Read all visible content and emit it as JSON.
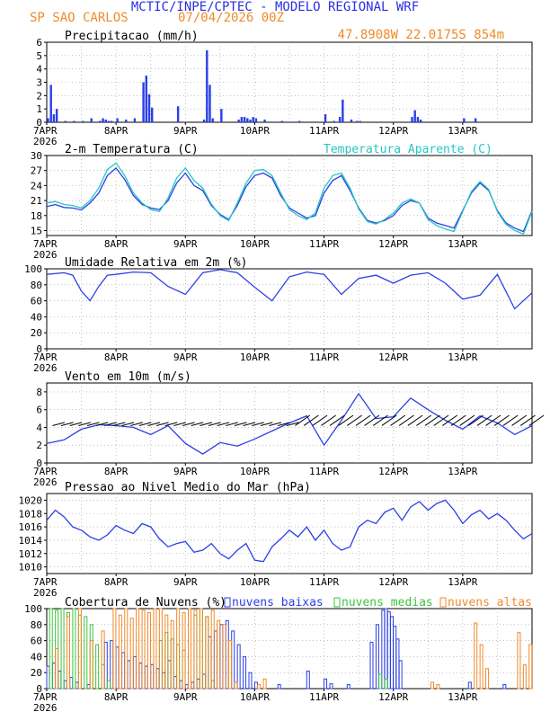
{
  "header": {
    "title": "MCTIC/INPE/CPTEC - MODELO REGIONAL WRF",
    "location": "SP SAO CARLOS",
    "run": "07/04/2026 00Z",
    "coords": "47.8908W 22.0175S 854m"
  },
  "colors": {
    "title": "#2a2fe0",
    "orange": "#f08a2c",
    "blue": "#2b3fe6",
    "cyan": "#26c6c6",
    "green": "#3ec43e",
    "black": "#000000",
    "grid": "#9a9a9a"
  },
  "x_axis": {
    "labels": [
      "7APR",
      "8APR",
      "9APR",
      "10APR",
      "11APR",
      "12APR",
      "13APR"
    ],
    "year": "2026"
  },
  "chart_data": [
    {
      "type": "bar",
      "title": "Precipitacao (mm/h)",
      "ylim": [
        0,
        6
      ],
      "yticks": [
        0,
        1,
        2,
        3,
        4,
        5,
        6
      ],
      "x_unit": "hours since 7APR 00Z",
      "x": [
        0,
        1,
        2,
        3,
        6,
        9,
        12,
        15,
        18,
        19,
        20,
        21,
        22,
        24,
        27,
        30,
        33,
        34,
        35,
        36,
        45,
        54,
        55,
        56,
        57,
        60,
        66,
        67,
        68,
        69,
        70,
        71,
        72,
        75,
        81,
        87,
        96,
        99,
        101,
        102,
        105,
        107,
        108,
        126,
        127,
        128,
        129,
        144,
        148
      ],
      "values": [
        0.3,
        2.8,
        0.6,
        1.0,
        0.1,
        0.1,
        0.1,
        0.3,
        0.1,
        0.3,
        0.2,
        0.1,
        0.1,
        0.3,
        0.2,
        0.3,
        3.0,
        3.5,
        2.1,
        1.1,
        1.2,
        0.2,
        5.4,
        2.8,
        0.3,
        1.0,
        0.2,
        0.4,
        0.4,
        0.3,
        0.2,
        0.4,
        0.3,
        0.2,
        0.1,
        0.1,
        0.6,
        0.1,
        0.4,
        1.7,
        0.2,
        0.1,
        0.1,
        0.4,
        0.9,
        0.4,
        0.2,
        0.3,
        0.3
      ]
    },
    {
      "type": "line",
      "title": "2-m Temperatura (C)",
      "legend": "Temperatura Aparente (C)",
      "ylim": [
        14,
        30
      ],
      "yticks": [
        15,
        18,
        21,
        24,
        27,
        30
      ],
      "x_unit": "hours since 7APR 00Z",
      "x": [
        0,
        3,
        6,
        9,
        12,
        15,
        18,
        21,
        24,
        27,
        30,
        33,
        36,
        39,
        42,
        45,
        48,
        51,
        54,
        57,
        60,
        63,
        66,
        69,
        72,
        75,
        78,
        81,
        84,
        87,
        90,
        93,
        96,
        99,
        102,
        105,
        108,
        111,
        114,
        117,
        120,
        123,
        126,
        129,
        132,
        135,
        138,
        141,
        144,
        147,
        150,
        153,
        156,
        159,
        162,
        165,
        168
      ],
      "series": [
        {
          "name": "2-m Temperatura (C)",
          "values": [
            19.8,
            20.2,
            19.6,
            19.5,
            19.1,
            20.5,
            22.5,
            26.0,
            27.5,
            25.2,
            22.0,
            20.2,
            19.5,
            19.2,
            21.0,
            24.5,
            26.5,
            24.0,
            23.0,
            20.0,
            18.2,
            17.2,
            20.0,
            23.8,
            26.0,
            26.5,
            25.5,
            22.0,
            19.5,
            18.5,
            17.5,
            18.0,
            22.5,
            25.0,
            26.0,
            23.0,
            19.5,
            17.0,
            16.5,
            17.0,
            18.0,
            20.0,
            21.0,
            20.5,
            17.5,
            16.5,
            16.0,
            15.5,
            19.0,
            22.5,
            24.5,
            23.0,
            19.0,
            16.5,
            15.5,
            14.8,
            19.0
          ]
        },
        {
          "name": "Temperatura Aparente (C)",
          "values": [
            20.5,
            20.8,
            20.2,
            20.0,
            19.5,
            21.0,
            23.5,
            27.2,
            28.5,
            26.0,
            22.5,
            20.5,
            19.2,
            18.8,
            21.5,
            25.5,
            27.5,
            25.0,
            23.5,
            20.3,
            18.0,
            17.0,
            20.5,
            24.5,
            27.0,
            27.2,
            26.0,
            22.5,
            19.2,
            18.0,
            17.2,
            18.5,
            23.5,
            26.0,
            26.5,
            23.5,
            19.3,
            16.8,
            16.3,
            17.2,
            18.5,
            20.5,
            21.3,
            20.5,
            17.2,
            16.0,
            15.3,
            14.8,
            18.8,
            22.8,
            24.8,
            23.2,
            18.8,
            16.2,
            15.0,
            14.3,
            18.8
          ]
        }
      ]
    },
    {
      "type": "line",
      "title": "Umidade Relativa em 2m (%)",
      "ylim": [
        0,
        100
      ],
      "yticks": [
        0,
        20,
        40,
        60,
        80,
        100
      ],
      "x_unit": "hours since 7APR 00Z",
      "x": [
        0,
        6,
        9,
        12,
        15,
        18,
        21,
        24,
        30,
        36,
        42,
        48,
        54,
        60,
        66,
        72,
        78,
        84,
        90,
        96,
        102,
        108,
        114,
        120,
        126,
        132,
        138,
        144,
        150,
        156,
        162,
        168
      ],
      "values": [
        93,
        95,
        92,
        72,
        60,
        78,
        92,
        93,
        96,
        95,
        78,
        68,
        95,
        99,
        95,
        77,
        60,
        90,
        96,
        93,
        68,
        88,
        92,
        82,
        92,
        95,
        82,
        62,
        67,
        93,
        50,
        70
      ]
    },
    {
      "type": "line",
      "title": "Vento em 10m (m/s)",
      "ylim": [
        0,
        9
      ],
      "yticks": [
        0,
        2,
        4,
        6,
        8
      ],
      "x_unit": "hours since 7APR 00Z",
      "x": [
        0,
        6,
        12,
        18,
        24,
        30,
        36,
        42,
        48,
        54,
        60,
        66,
        72,
        78,
        84,
        90,
        96,
        102,
        108,
        114,
        120,
        126,
        132,
        138,
        144,
        150,
        156,
        162,
        168
      ],
      "values": [
        2.2,
        2.6,
        3.8,
        4.3,
        4.2,
        4.0,
        3.2,
        4.2,
        2.2,
        1.0,
        2.3,
        1.9,
        2.7,
        3.6,
        4.5,
        5.3,
        2.0,
        4.8,
        7.8,
        5.0,
        5.2,
        7.3,
        6.0,
        4.8,
        3.8,
        5.3,
        4.5,
        3.2,
        4.2
      ]
    },
    {
      "type": "line",
      "title": "Pressao ao Nivel Medio do Mar (hPa)",
      "ylim": [
        1009,
        1021
      ],
      "yticks": [
        1010,
        1012,
        1014,
        1016,
        1018,
        1020
      ],
      "x_unit": "hours since 7APR 00Z",
      "x": [
        0,
        3,
        6,
        9,
        12,
        15,
        18,
        21,
        24,
        27,
        30,
        33,
        36,
        39,
        42,
        45,
        48,
        51,
        54,
        57,
        60,
        63,
        66,
        69,
        72,
        75,
        78,
        81,
        84,
        87,
        90,
        93,
        96,
        99,
        102,
        105,
        108,
        111,
        114,
        117,
        120,
        123,
        126,
        129,
        132,
        135,
        138,
        141,
        144,
        147,
        150,
        153,
        156,
        159,
        162,
        165,
        168
      ],
      "values": [
        1017.0,
        1018.5,
        1017.5,
        1016.0,
        1015.5,
        1014.5,
        1014.0,
        1014.8,
        1016.2,
        1015.5,
        1015.0,
        1016.5,
        1016.0,
        1014.2,
        1013.0,
        1013.5,
        1013.8,
        1012.2,
        1012.5,
        1013.5,
        1012.0,
        1011.2,
        1012.5,
        1013.5,
        1011.0,
        1010.8,
        1013.0,
        1014.2,
        1015.5,
        1014.5,
        1016.0,
        1014.0,
        1015.5,
        1013.5,
        1012.5,
        1013.0,
        1016.0,
        1017.0,
        1016.5,
        1018.2,
        1018.8,
        1017.0,
        1019.0,
        1019.8,
        1018.5,
        1019.5,
        1020.0,
        1018.5,
        1016.5,
        1017.8,
        1018.5,
        1017.2,
        1018.0,
        1017.0,
        1015.5,
        1014.2,
        1015.0
      ]
    },
    {
      "type": "bar",
      "title": "Cobertura de Nuvens (%)",
      "ylim": [
        0,
        100
      ],
      "yticks": [
        0,
        20,
        40,
        60,
        80,
        100
      ],
      "x_unit": "hours since 7APR 00Z",
      "series": [
        {
          "name": "nuvens baixas",
          "x": [
            0,
            2,
            4,
            6,
            8,
            10,
            14,
            20,
            22,
            24,
            26,
            28,
            30,
            32,
            34,
            36,
            38,
            40,
            42,
            44,
            46,
            48,
            50,
            52,
            54,
            56,
            58,
            60,
            62,
            64,
            66,
            68,
            70,
            72,
            80,
            90,
            96,
            98,
            104,
            112,
            114,
            116,
            117,
            118,
            119,
            120,
            121,
            122,
            146,
            158
          ],
          "values": [
            28,
            32,
            22,
            10,
            14,
            8,
            5,
            58,
            60,
            52,
            45,
            35,
            40,
            32,
            28,
            30,
            25,
            20,
            35,
            15,
            10,
            5,
            8,
            12,
            18,
            65,
            72,
            80,
            85,
            72,
            55,
            40,
            20,
            8,
            5,
            22,
            12,
            6,
            5,
            58,
            80,
            98,
            100,
            96,
            90,
            78,
            62,
            35,
            8,
            5
          ]
        },
        {
          "name": "nuvens medias",
          "x": [
            1,
            3,
            5,
            7,
            9,
            11,
            13,
            15,
            17,
            19,
            21,
            39,
            41,
            43,
            45,
            47,
            49,
            51,
            53,
            55,
            57,
            115,
            117
          ],
          "values": [
            100,
            98,
            100,
            95,
            100,
            92,
            90,
            80,
            55,
            30,
            10,
            60,
            70,
            62,
            55,
            48,
            100,
            92,
            100,
            90,
            10,
            18,
            12
          ]
        },
        {
          "name": "nuvens altas",
          "x": [
            3,
            7,
            11,
            15,
            19,
            23,
            25,
            27,
            29,
            31,
            33,
            35,
            37,
            39,
            41,
            43,
            45,
            47,
            49,
            51,
            53,
            55,
            57,
            59,
            61,
            63,
            65,
            73,
            75,
            133,
            135,
            148,
            150,
            152,
            163,
            165,
            167
          ],
          "values": [
            50,
            90,
            100,
            60,
            72,
            100,
            92,
            100,
            88,
            100,
            98,
            95,
            100,
            100,
            92,
            85,
            100,
            95,
            100,
            98,
            100,
            90,
            98,
            85,
            80,
            60,
            8,
            5,
            12,
            8,
            5,
            82,
            55,
            25,
            70,
            30,
            55
          ]
        }
      ]
    }
  ]
}
